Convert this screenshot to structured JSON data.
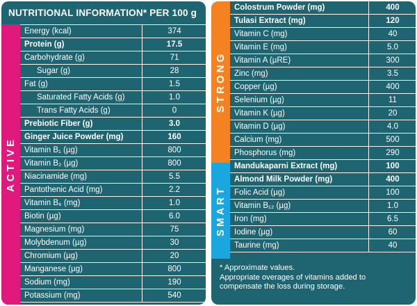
{
  "title": "NUTRITIONAL INFORMATION* PER 100 g",
  "colors": {
    "panel": "#1f6571",
    "active": "#e2197d",
    "strong": "#f58220",
    "smart": "#1aa6df"
  },
  "sections": {
    "active": "ACTIVE",
    "strong": "STRONG",
    "smart": "SMART"
  },
  "left_rows": [
    {
      "name": "Energy (kcal)",
      "value": "374"
    },
    {
      "name": "Protein (g)",
      "value": "17.5",
      "bold": true
    },
    {
      "name": "Carbohydrate (g)",
      "value": "71"
    },
    {
      "name": "Sugar (g)",
      "value": "28",
      "indent": true
    },
    {
      "name": "Fat (g)",
      "value": "1.5"
    },
    {
      "name": "Saturated Fatty Acids (g)",
      "value": "1.0",
      "indent": true
    },
    {
      "name": "Trans Fatty Acids (g)",
      "value": "0",
      "indent": true
    },
    {
      "name": "Prebiotic Fiber (g)",
      "value": "3.0",
      "bold": true
    },
    {
      "name": "Ginger Juice Powder (mg)",
      "value": "160",
      "bold": true
    },
    {
      "name": "Vitamin B₁ (µg)",
      "value": "800"
    },
    {
      "name": "Vitamin B₂ (µg)",
      "value": "800"
    },
    {
      "name": "Niacinamide (mg)",
      "value": "5.5"
    },
    {
      "name": "Pantothenic Acid (mg)",
      "value": "2.2"
    },
    {
      "name": "Vitamin B₆ (mg)",
      "value": "1.0"
    },
    {
      "name": "Biotin (µg)",
      "value": "6.0"
    },
    {
      "name": "Magnesium (mg)",
      "value": "75"
    },
    {
      "name": "Molybdenum (µg)",
      "value": "30"
    },
    {
      "name": "Chromium (µg)",
      "value": "20"
    },
    {
      "name": "Manganese (µg)",
      "value": "800"
    },
    {
      "name": "Sodium (mg)",
      "value": "190"
    },
    {
      "name": "Potassium (mg)",
      "value": "540"
    }
  ],
  "right_rows": [
    {
      "name": "Colostrum Powder (mg)",
      "value": "400",
      "bold": true
    },
    {
      "name": "Tulasi Extract (mg)",
      "value": "120",
      "bold": true
    },
    {
      "name": "Vitamin C (mg)",
      "value": "40"
    },
    {
      "name": "Vitamin E (mg)",
      "value": "5.0"
    },
    {
      "name": "Vitamin A (µRE)",
      "value": "300"
    },
    {
      "name": "Zinc (mg)",
      "value": "3.5"
    },
    {
      "name": "Copper (µg)",
      "value": "400"
    },
    {
      "name": "Selenium (µg)",
      "value": "11"
    },
    {
      "name": "Vitamin K (µg)",
      "value": "20"
    },
    {
      "name": "Vitamin D (µg)",
      "value": "4.0"
    },
    {
      "name": "Calcium (mg)",
      "value": "500"
    },
    {
      "name": "Phosphorus (mg)",
      "value": "290"
    },
    {
      "name": "Mandukaparni Extract (mg)",
      "value": "100",
      "bold": true
    },
    {
      "name": "Almond Milk Powder (mg)",
      "value": "400",
      "bold": true
    },
    {
      "name": "Folic Acid (µg)",
      "value": "100"
    },
    {
      "name": "Vitamin B₁₂ (µg)",
      "value": "1.0"
    },
    {
      "name": "Iron (mg)",
      "value": "6.5"
    },
    {
      "name": "Iodine (µg)",
      "value": "60"
    },
    {
      "name": "Taurine (mg)",
      "value": "40"
    }
  ],
  "notes": [
    "* Approximate values.",
    "Appropriate overages of vitamins added to",
    "compensate the loss during storage."
  ]
}
